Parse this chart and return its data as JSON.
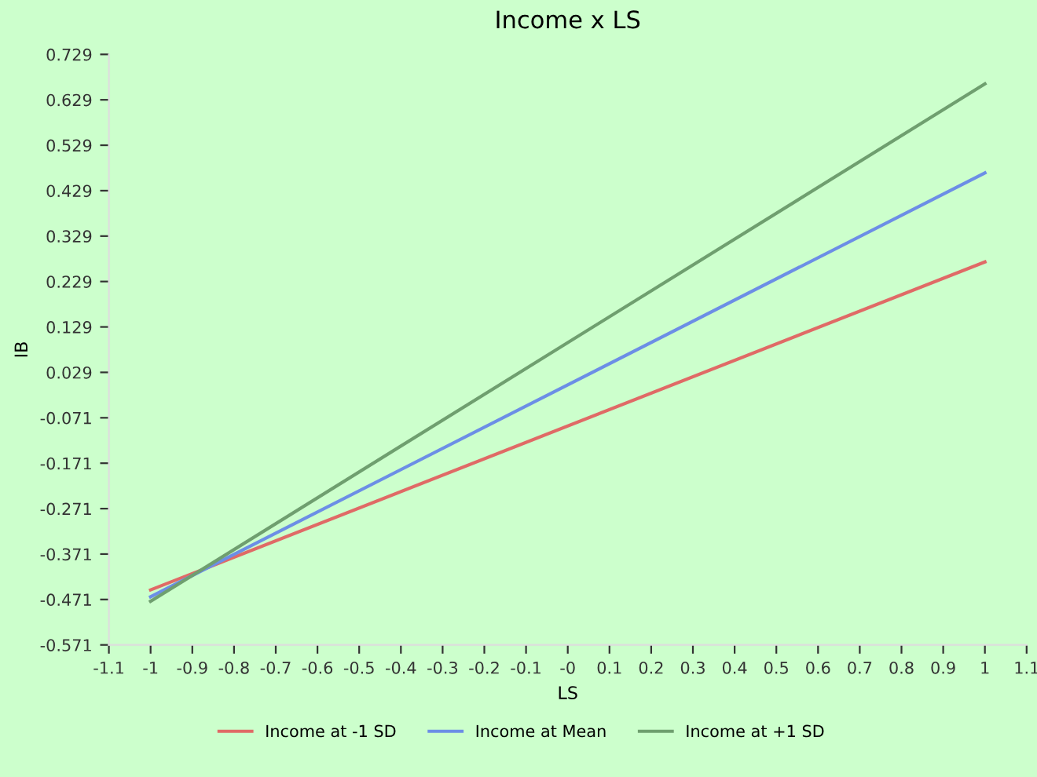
{
  "chart_data": {
    "type": "line",
    "title": "Income x LS",
    "xlabel": "LS",
    "ylabel": "IB",
    "x": [
      -1,
      1
    ],
    "series": [
      {
        "name": "Income at -1 SD",
        "color": "#e06a66",
        "values": [
          -0.45,
          0.272
        ]
      },
      {
        "name": "Income at Mean",
        "color": "#6c8ee6",
        "values": [
          -0.465,
          0.468
        ]
      },
      {
        "name": "Income at +1 SD",
        "color": "#6f9f6f",
        "values": [
          -0.475,
          0.664
        ]
      }
    ],
    "xlim": [
      -1.1,
      1.1
    ],
    "xticks": [
      -1.1,
      -1,
      -0.9,
      -0.8,
      -0.7,
      -0.6,
      -0.5,
      -0.4,
      -0.3,
      -0.2,
      -0.1,
      {
        "value": 0,
        "label": "-0"
      },
      0.1,
      0.2,
      0.3,
      0.4,
      0.5,
      0.6,
      0.7,
      0.8,
      0.9,
      1,
      1.1
    ],
    "ylim": [
      -0.571,
      0.729
    ],
    "yticks": [
      -0.571,
      -0.471,
      -0.371,
      -0.271,
      -0.171,
      -0.071,
      0.029,
      0.129,
      0.229,
      0.329,
      0.429,
      0.529,
      0.629,
      0.729
    ],
    "grid": false,
    "legend": "bottom",
    "marker": "none",
    "line_style": "solid"
  }
}
